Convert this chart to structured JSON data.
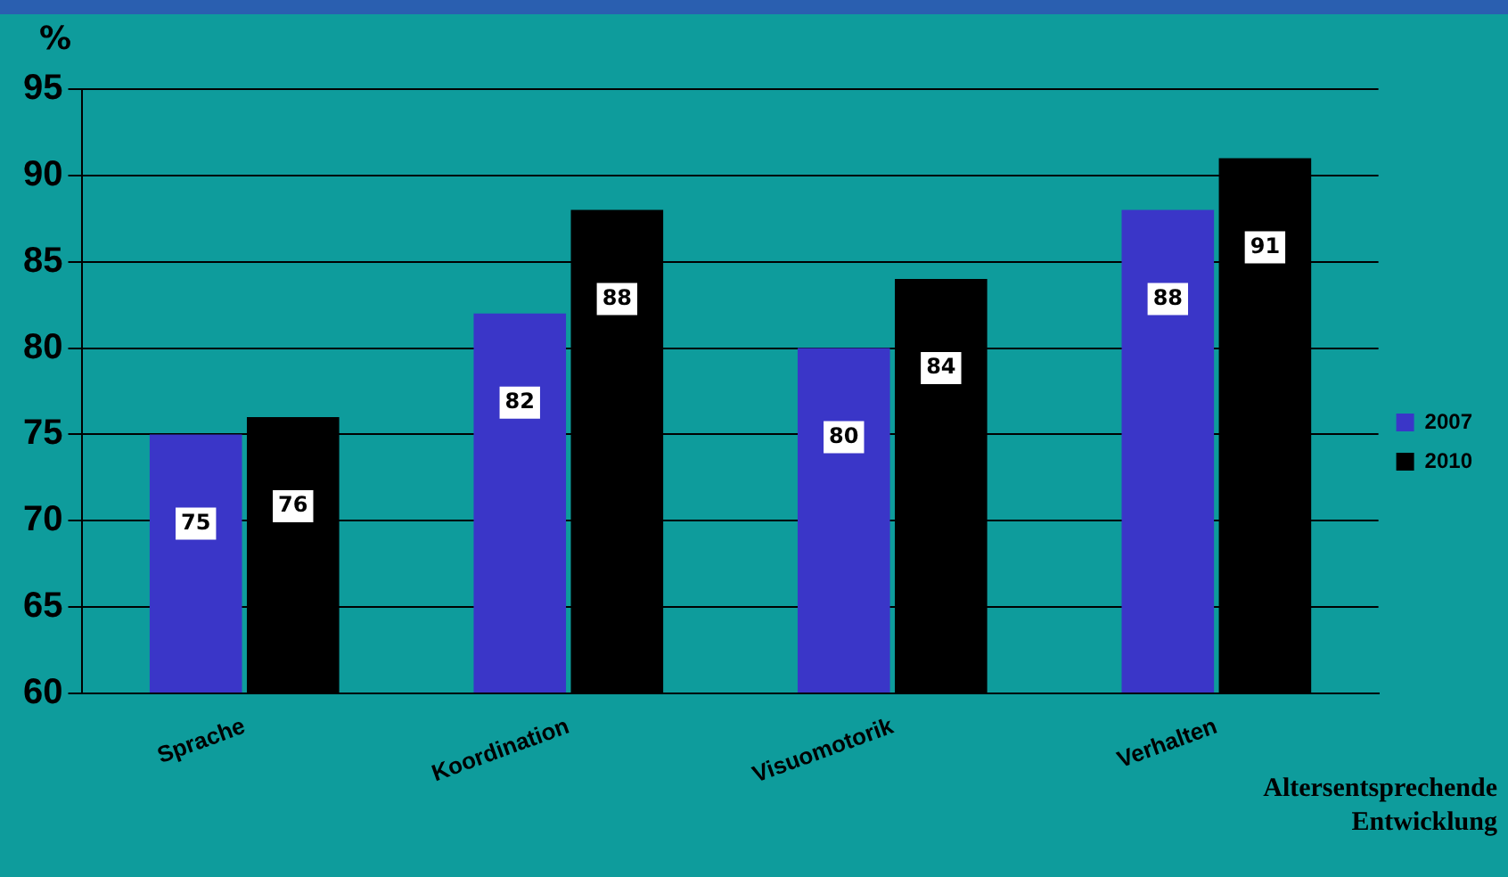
{
  "chart_data": {
    "type": "bar",
    "ylabel": "%",
    "xlabel": "Altersentsprechende Entwicklung",
    "categories": [
      "Sprache",
      "Koordination",
      "Visuomotorik",
      "Verhalten"
    ],
    "series": [
      {
        "name": "2007",
        "color": "#3a36c8",
        "values": [
          75,
          82,
          80,
          88
        ]
      },
      {
        "name": "2010",
        "color": "#000000",
        "values": [
          76,
          88,
          84,
          91
        ]
      }
    ],
    "ylim": [
      60,
      95
    ],
    "yticks": [
      60,
      65,
      70,
      75,
      80,
      85,
      90,
      95
    ],
    "grid": "y",
    "legend": "right",
    "data_labels": true
  }
}
